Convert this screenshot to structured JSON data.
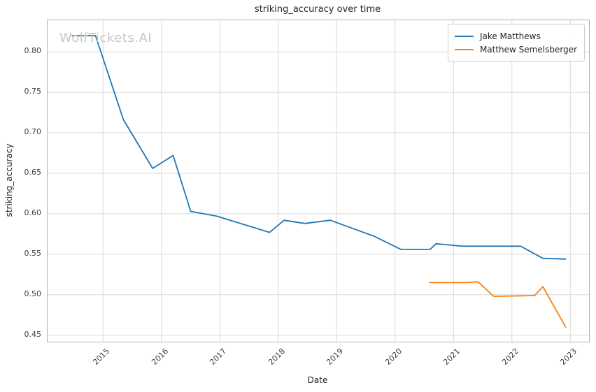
{
  "figure": {
    "watermark": "WolfTickets.AI"
  },
  "chart_data": {
    "type": "line",
    "title": "striking_accuracy over time",
    "xlabel": "Date",
    "ylabel": "striking_accuracy",
    "xlim": [
      2014.05,
      2023.32
    ],
    "ylim": [
      0.442,
      0.839
    ],
    "x_ticks": [
      2015,
      2016,
      2017,
      2018,
      2019,
      2020,
      2021,
      2022,
      2023
    ],
    "y_ticks": [
      0.45,
      0.5,
      0.55,
      0.6,
      0.65,
      0.7,
      0.75,
      0.8
    ],
    "grid": true,
    "legend_position": "upper right",
    "series": [
      {
        "name": "Jake Matthews",
        "color": "#1f77b4",
        "points": [
          [
            2014.47,
            0.82
          ],
          [
            2014.87,
            0.82
          ],
          [
            2015.35,
            0.716
          ],
          [
            2015.85,
            0.656
          ],
          [
            2016.2,
            0.672
          ],
          [
            2016.5,
            0.603
          ],
          [
            2016.72,
            0.6
          ],
          [
            2016.95,
            0.597
          ],
          [
            2017.85,
            0.577
          ],
          [
            2018.1,
            0.592
          ],
          [
            2018.45,
            0.588
          ],
          [
            2018.89,
            0.592
          ],
          [
            2019.65,
            0.572
          ],
          [
            2020.1,
            0.556
          ],
          [
            2020.6,
            0.556
          ],
          [
            2020.7,
            0.563
          ],
          [
            2021.15,
            0.56
          ],
          [
            2022.15,
            0.56
          ],
          [
            2022.53,
            0.545
          ],
          [
            2022.92,
            0.544
          ]
        ]
      },
      {
        "name": "Matthew Semelsberger",
        "color": "#ff7f0e",
        "points": [
          [
            2020.59,
            0.515
          ],
          [
            2021.24,
            0.515
          ],
          [
            2021.42,
            0.516
          ],
          [
            2021.69,
            0.498
          ],
          [
            2022.39,
            0.499
          ],
          [
            2022.53,
            0.51
          ],
          [
            2022.92,
            0.46
          ]
        ]
      }
    ]
  },
  "colors": {
    "grid": "#d9d9d9",
    "spine": "#b0b0b0",
    "title_text": "#262626",
    "tick_text": "#3c3c3c",
    "watermark": "#c6c6c6",
    "background": "#ffffff"
  }
}
